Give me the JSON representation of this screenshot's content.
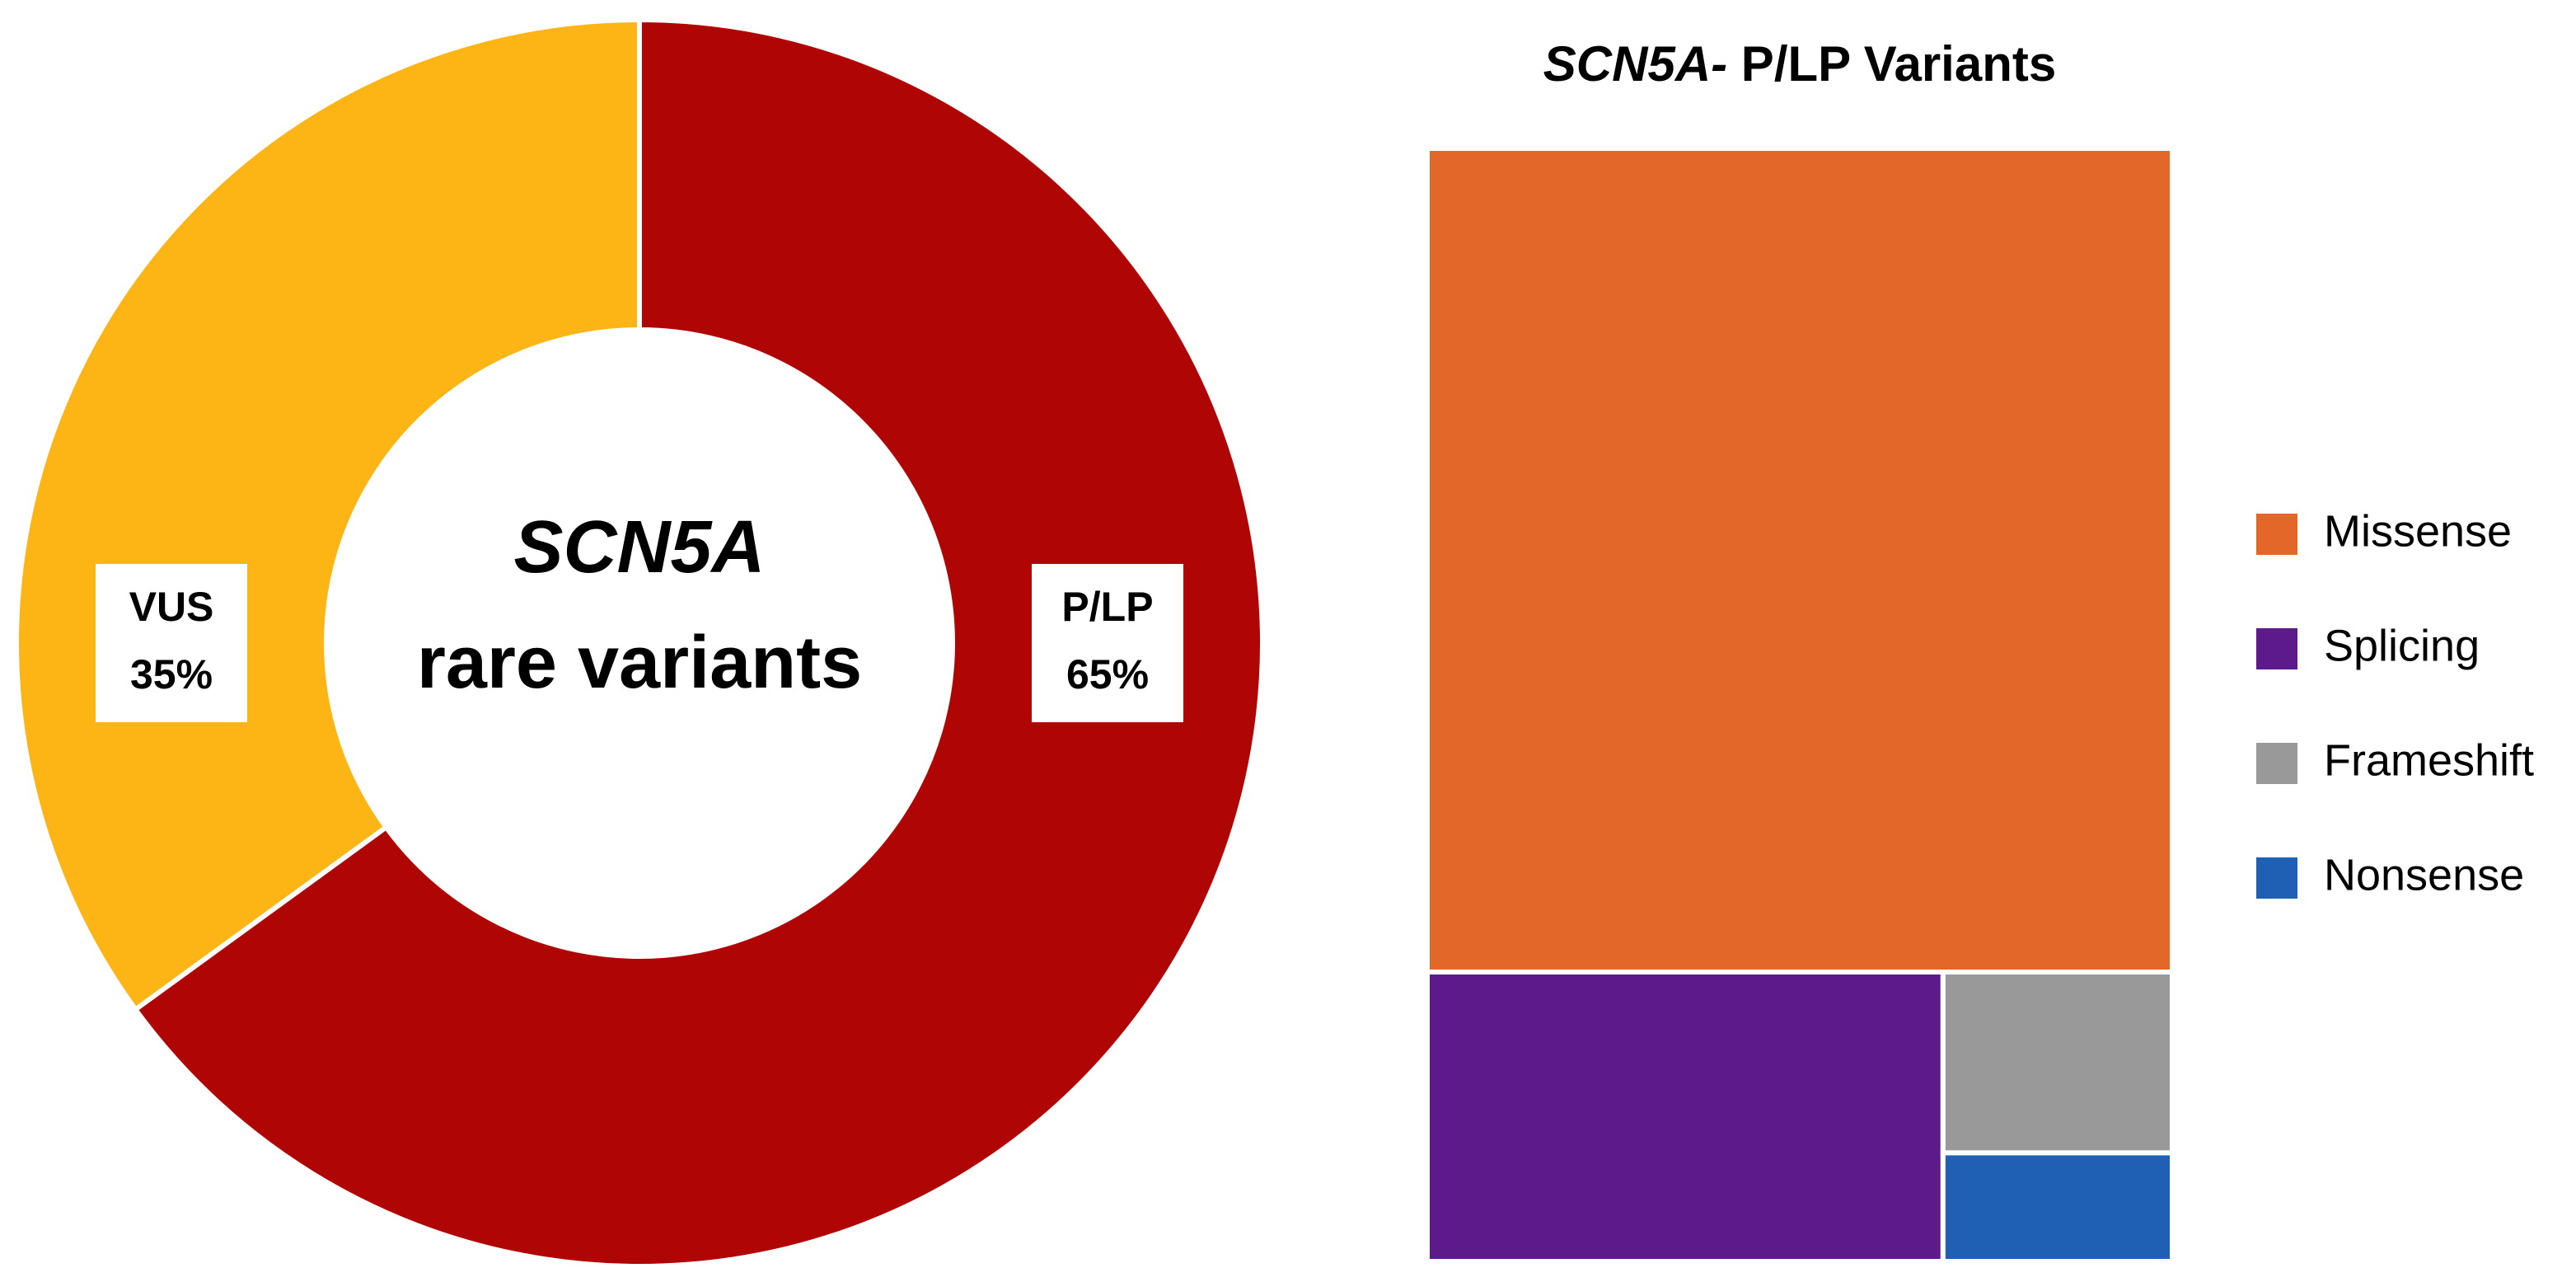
{
  "chart_data": [
    {
      "type": "donut",
      "center_title": "SCN5A",
      "center_subtitle": "rare variants",
      "categories": [
        "P/LP",
        "VUS"
      ],
      "values": [
        65,
        35
      ],
      "value_labels": [
        "65%",
        "35%"
      ],
      "colors": [
        "#b00505",
        "#fdb515"
      ]
    },
    {
      "type": "treemap",
      "title_italic": "SCN5A-",
      "title": "P/LP Variants",
      "categories": [
        "Missense",
        "Splicing",
        "Frameshift",
        "Nonsense"
      ],
      "values": [
        74,
        18,
        5,
        3
      ],
      "colors": [
        "#e4672a",
        "#5c1a8b",
        "#999999",
        "#1f5fb4"
      ],
      "legend": "right"
    }
  ]
}
